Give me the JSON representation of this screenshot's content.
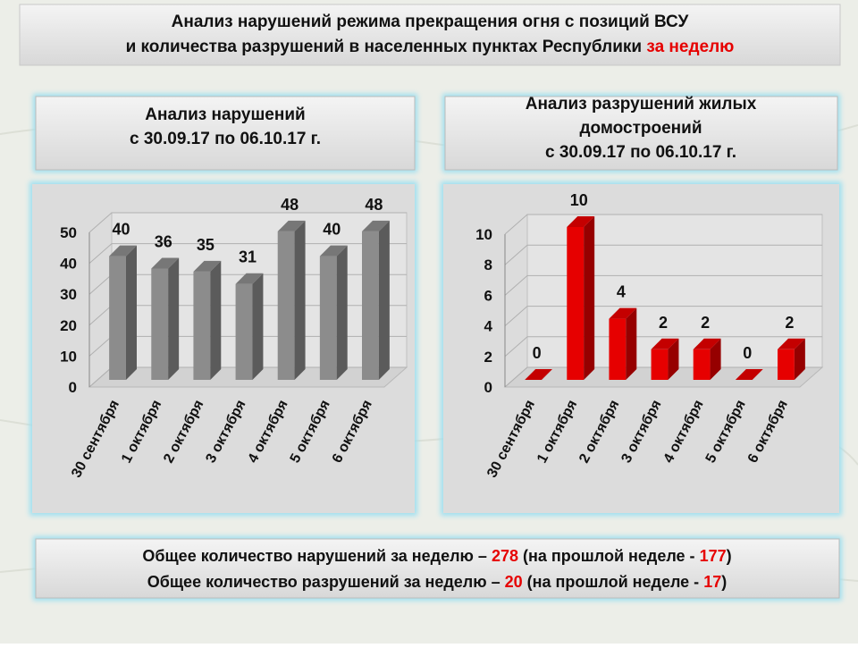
{
  "header": {
    "line1": "Анализ нарушений режима прекращения огня с позиций ВСУ",
    "line2": "и количества разрушений в населенных пунктах Республики",
    "line2_highlight": "за неделю"
  },
  "chart_data": [
    {
      "type": "bar",
      "title": [
        "Анализ нарушений",
        "с 30.09.17 по 06.10.17 г."
      ],
      "categories": [
        "30 сентября",
        "1 октября",
        "2 октября",
        "3 октября",
        "4 октября",
        "5 октября",
        "6 октября"
      ],
      "values": [
        40,
        36,
        35,
        31,
        48,
        40,
        48
      ],
      "color": "#8c8c8c",
      "ylim": [
        0,
        50
      ],
      "yticks": [
        0,
        10,
        20,
        30,
        40,
        50
      ],
      "grid": true
    },
    {
      "type": "bar",
      "title": [
        "Анализ разрушений жилых",
        "домостроений",
        "с 30.09.17 по 06.10.17 г."
      ],
      "categories": [
        "30 сентября",
        "1 октября",
        "2 октября",
        "3 октября",
        "4 октября",
        "5 октября",
        "6 октября"
      ],
      "values": [
        0,
        10,
        4,
        2,
        2,
        0,
        2
      ],
      "color": "#e60000",
      "ylim": [
        0,
        10
      ],
      "yticks": [
        0,
        2,
        4,
        6,
        8,
        10
      ],
      "grid": true
    }
  ],
  "summary": [
    {
      "text": "Общее количество нарушений за неделю –",
      "value": 278,
      "mid": "(на прошлой неделе -",
      "prev": 177,
      "end": ")"
    },
    {
      "text": "Общее количество разрушений за неделю –",
      "value": 20,
      "mid": "(на прошлой неделе -",
      "prev": 17,
      "end": ")"
    }
  ]
}
